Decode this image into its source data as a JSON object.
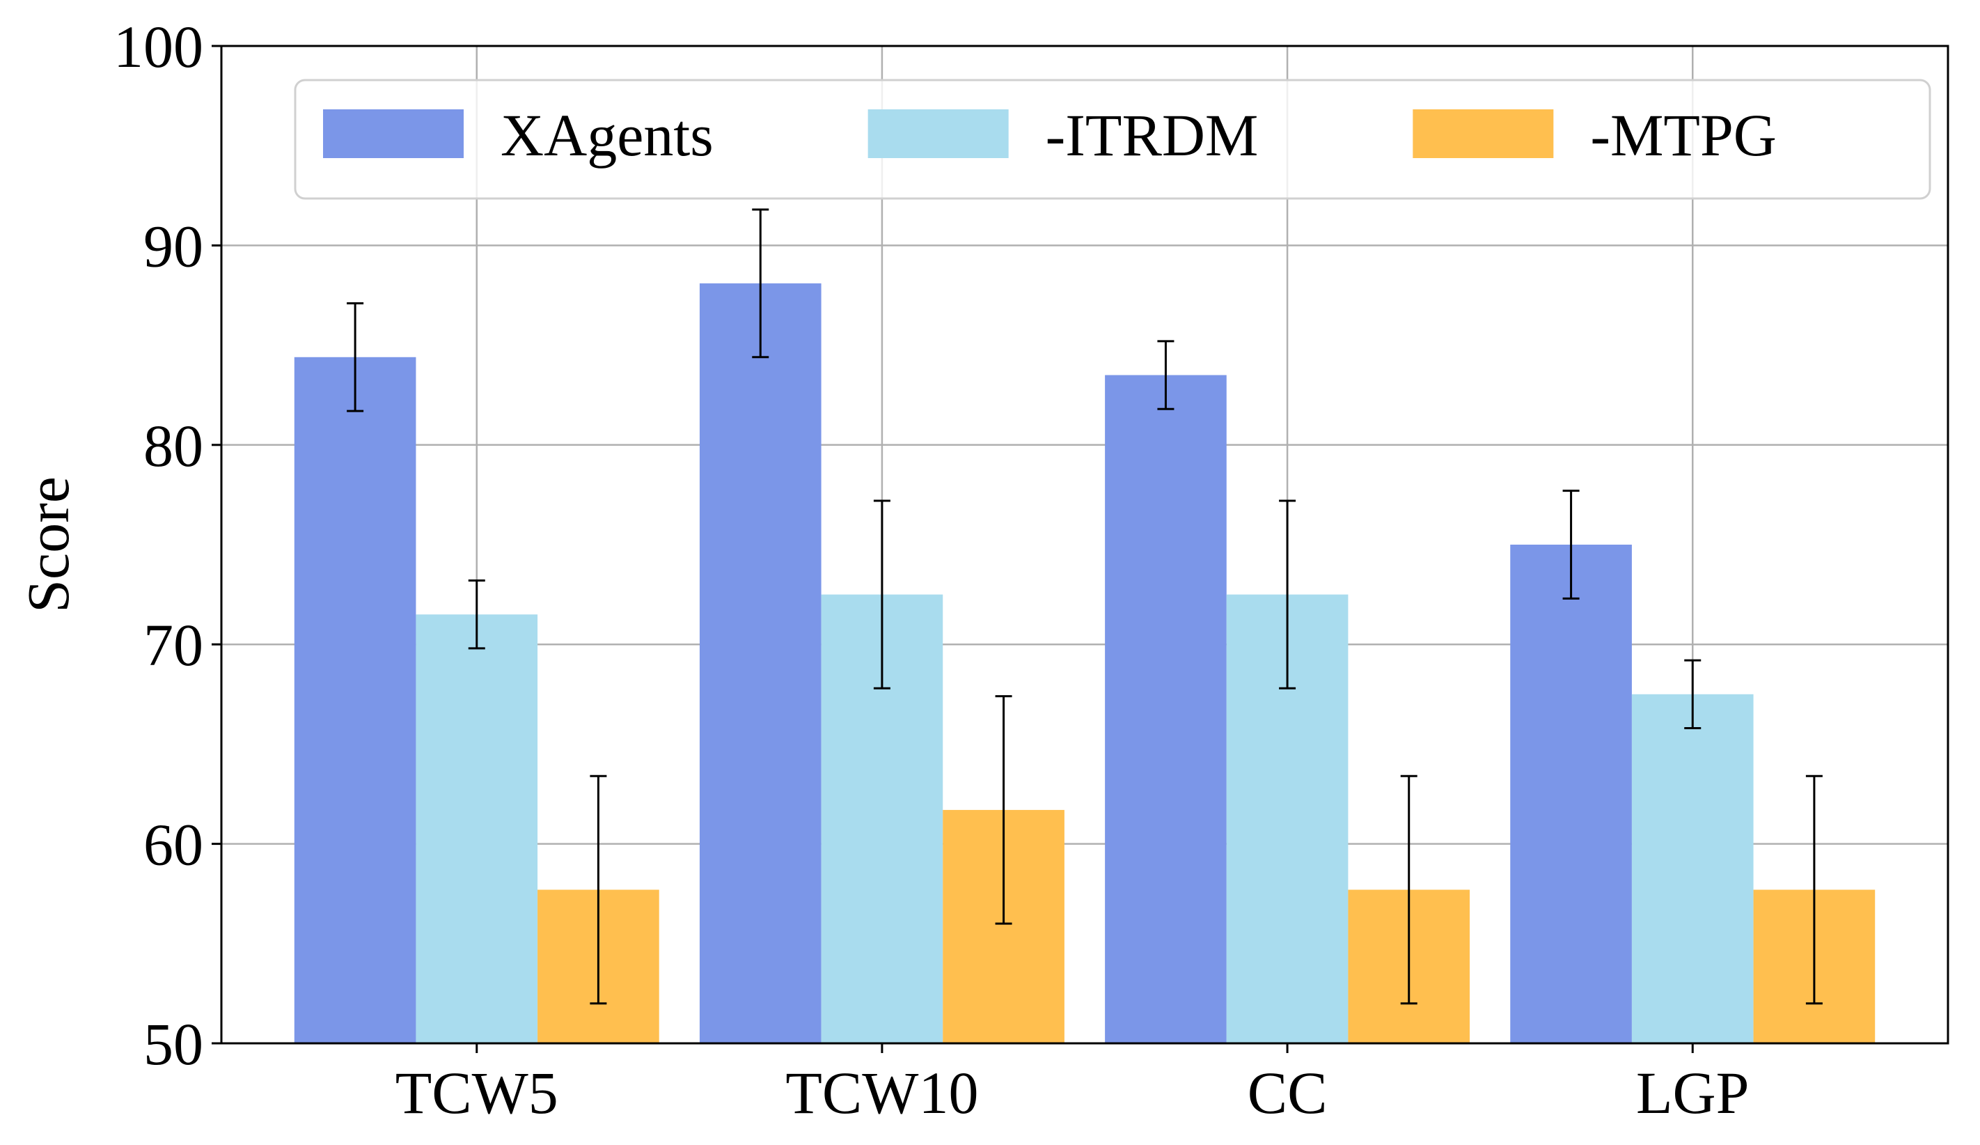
{
  "chart_data": {
    "type": "bar",
    "title": "",
    "xlabel": "",
    "ylabel": "Score",
    "ylim": [
      50,
      100
    ],
    "yticks": [
      50,
      60,
      70,
      80,
      90,
      100
    ],
    "grid": true,
    "legend_position": "top",
    "categories": [
      "TCW5",
      "TCW10",
      "CC",
      "LGP"
    ],
    "series": [
      {
        "name": "XAgents",
        "color": "#7b96e8",
        "values": [
          84.4,
          88.1,
          83.5,
          75.0
        ],
        "errors": [
          2.7,
          3.7,
          1.7,
          2.7
        ]
      },
      {
        "name": "-ITRDM",
        "color": "#a9dcee",
        "values": [
          71.5,
          72.5,
          72.5,
          67.5
        ],
        "errors": [
          1.7,
          4.7,
          4.7,
          1.7
        ]
      },
      {
        "name": "-MTPG",
        "color": "#ffbf4f",
        "values": [
          57.7,
          61.7,
          57.7,
          57.7
        ],
        "errors": [
          5.7,
          5.7,
          5.7,
          5.7
        ]
      }
    ]
  }
}
